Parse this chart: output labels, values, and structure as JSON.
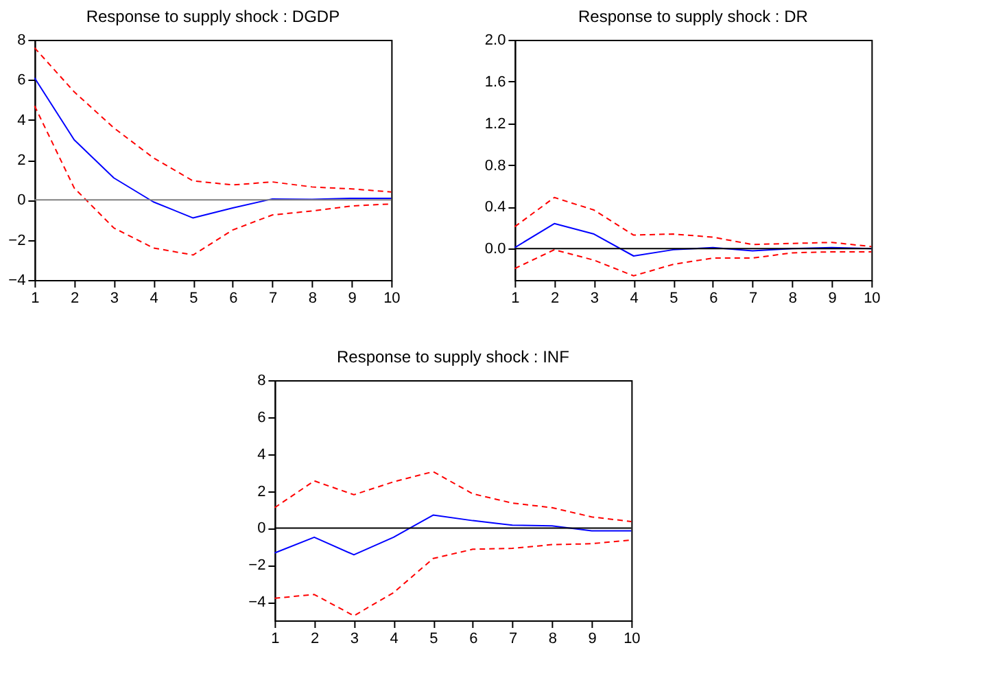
{
  "chart_data": [
    {
      "type": "line",
      "title": "Response  to supply shock : DGDP",
      "x": [
        1,
        2,
        3,
        4,
        5,
        6,
        7,
        8,
        9,
        10
      ],
      "xlim": [
        1,
        10
      ],
      "xticks": [
        1,
        2,
        3,
        4,
        5,
        6,
        7,
        8,
        9,
        10
      ],
      "ylim": [
        -4,
        8
      ],
      "yticks": [
        -4,
        -2,
        0,
        2,
        4,
        6,
        8
      ],
      "grid": false,
      "legend": false,
      "series": [
        {
          "color": "#0000ff",
          "line_style": "solid",
          "values": [
            6.1,
            3.0,
            1.1,
            -0.1,
            -0.9,
            -0.4,
            0.05,
            0.03,
            0.08,
            0.08
          ]
        },
        {
          "color": "#ff0000",
          "line_style": "dashed",
          "values": [
            7.6,
            5.4,
            3.6,
            2.1,
            0.95,
            0.75,
            0.9,
            0.65,
            0.55,
            0.4
          ]
        },
        {
          "color": "#ff0000",
          "line_style": "dashed",
          "values": [
            4.7,
            0.6,
            -1.4,
            -2.4,
            -2.75,
            -1.5,
            -0.75,
            -0.55,
            -0.3,
            -0.2
          ]
        }
      ],
      "ref_lines": [
        {
          "axis": "y",
          "value": 0,
          "color": "#808080"
        }
      ]
    },
    {
      "type": "line",
      "title": "Response  to supply shock : DR",
      "x": [
        1,
        2,
        3,
        4,
        5,
        6,
        7,
        8,
        9,
        10
      ],
      "xlim": [
        1,
        10
      ],
      "xticks": [
        1,
        2,
        3,
        4,
        5,
        6,
        7,
        8,
        9,
        10
      ],
      "ylim": [
        -0.3,
        2.0
      ],
      "yticks": [
        {
          "value": 0,
          "label": "0.0"
        },
        0.4,
        0.8,
        1.2,
        1.6,
        {
          "value": 2,
          "label": "2.0"
        }
      ],
      "grid": false,
      "legend": false,
      "series": [
        {
          "color": "#0000ff",
          "line_style": "solid",
          "values": [
            0.01,
            0.24,
            0.14,
            -0.07,
            -0.01,
            0.01,
            -0.02,
            0.0,
            0.01,
            0.0
          ]
        },
        {
          "color": "#ff0000",
          "line_style": "dashed",
          "values": [
            0.21,
            0.49,
            0.37,
            0.13,
            0.14,
            0.11,
            0.04,
            0.05,
            0.06,
            0.02
          ]
        },
        {
          "color": "#ff0000",
          "line_style": "dashed",
          "values": [
            -0.19,
            -0.01,
            -0.11,
            -0.26,
            -0.15,
            -0.09,
            -0.09,
            -0.04,
            -0.03,
            -0.03
          ]
        }
      ],
      "ref_lines": [
        {
          "axis": "y",
          "value": 0,
          "color": "#000000"
        }
      ]
    },
    {
      "type": "line",
      "title": "Response  to supply shock : INF",
      "x": [
        1,
        2,
        3,
        4,
        5,
        6,
        7,
        8,
        9,
        10
      ],
      "xlim": [
        1,
        10
      ],
      "xticks": [
        1,
        2,
        3,
        4,
        5,
        6,
        7,
        8,
        9,
        10
      ],
      "ylim": [
        -5,
        8
      ],
      "yticks": [
        -4,
        -2,
        0,
        2,
        4,
        6,
        8
      ],
      "grid": false,
      "legend": false,
      "series": [
        {
          "color": "#0000ff",
          "line_style": "solid",
          "values": [
            -1.35,
            -0.5,
            -1.45,
            -0.5,
            0.7,
            0.4,
            0.15,
            0.12,
            -0.15,
            -0.15
          ]
        },
        {
          "color": "#ff0000",
          "line_style": "dashed",
          "values": [
            1.1,
            2.55,
            1.8,
            2.5,
            3.05,
            1.85,
            1.35,
            1.1,
            0.6,
            0.35
          ]
        },
        {
          "color": "#ff0000",
          "line_style": "dashed",
          "values": [
            -3.8,
            -3.6,
            -4.75,
            -3.5,
            -1.65,
            -1.15,
            -1.1,
            -0.9,
            -0.85,
            -0.65
          ]
        }
      ],
      "ref_lines": [
        {
          "axis": "y",
          "value": 0,
          "color": "#000000"
        }
      ]
    }
  ]
}
